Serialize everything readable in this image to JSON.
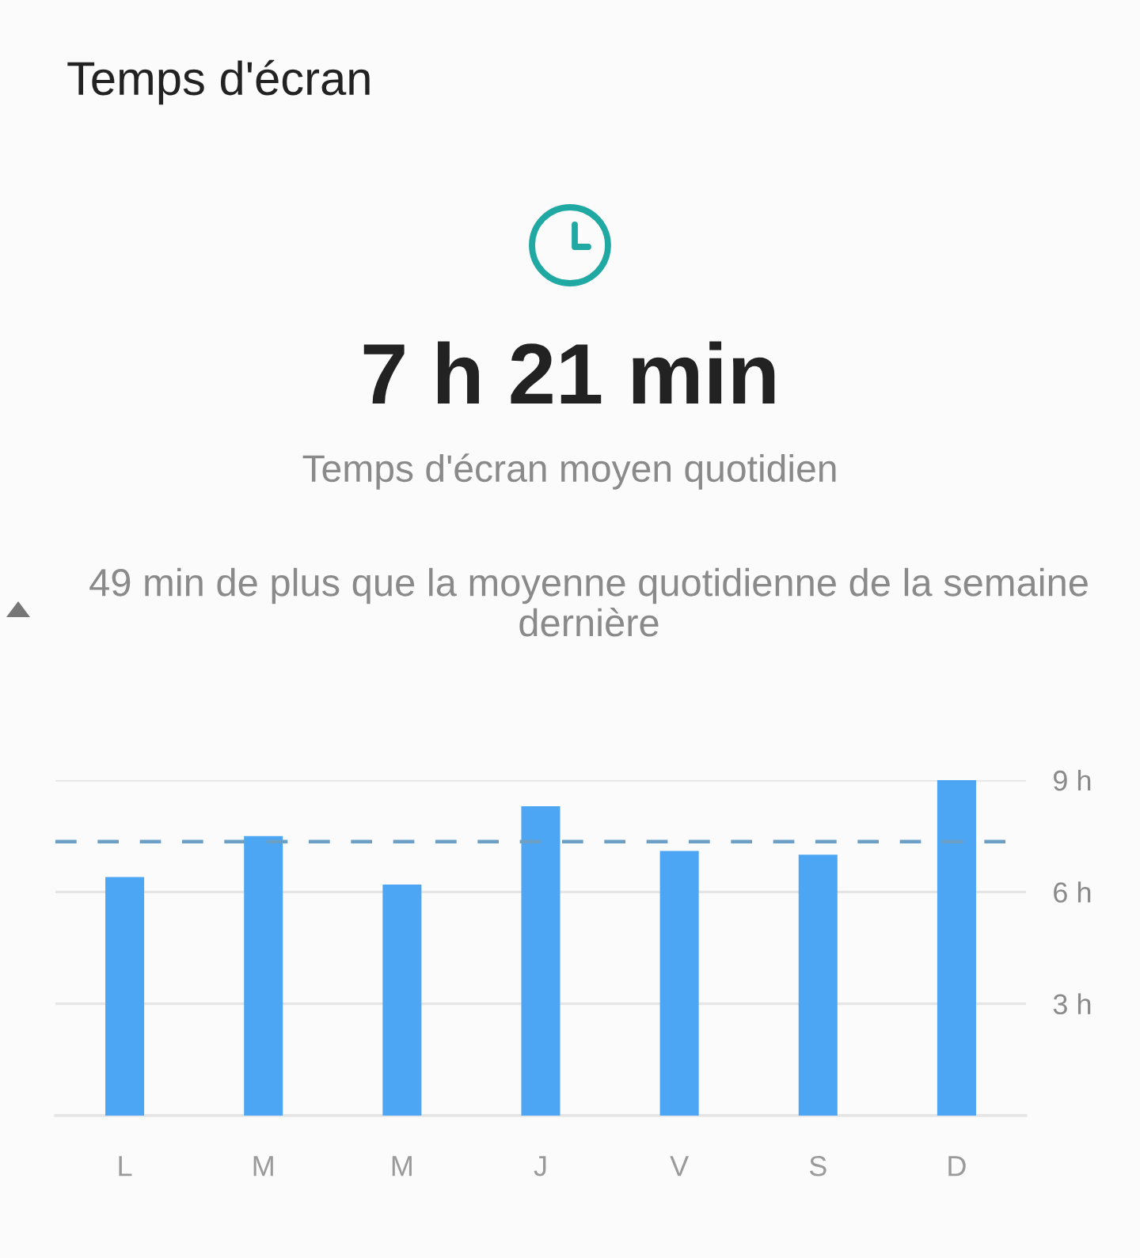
{
  "chart_data": {
    "type": "bar",
    "title": "Temps d'écran",
    "subtitle": "7 h 21 min",
    "annotations": [
      "Temps d'écran moyen quotidien",
      "49 min de plus que la moyenne quotidienne de la semaine dernière"
    ],
    "categories": [
      "L",
      "M",
      "M",
      "J",
      "V",
      "S",
      "D"
    ],
    "values": [
      6.4,
      7.5,
      6.2,
      8.3,
      7.1,
      7.0,
      9.0
    ],
    "color": "#4da6f3",
    "ylim": [
      0,
      9
    ],
    "yticks": [
      {
        "value": 0,
        "label": null
      },
      {
        "value": 3,
        "label": "3 h"
      },
      {
        "value": 6,
        "label": "6 h"
      },
      {
        "value": 9,
        "label": "9 h"
      }
    ],
    "grid": "y",
    "ref_lines": [
      {
        "axis": "y",
        "value": 7.35,
        "color": "#6b9fc6",
        "line_style": "dashed"
      }
    ]
  }
}
